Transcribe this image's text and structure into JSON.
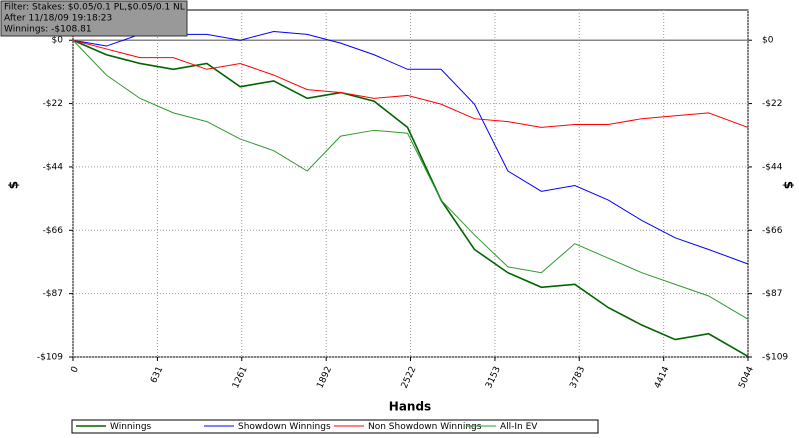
{
  "chart_data": {
    "type": "line",
    "filter_lines": [
      "Filter: Stakes: $0.05/0.1 PL,$0.05/0.1 NL",
      "After 11/18/09 19:18:23",
      "Winnings: -$108.81"
    ],
    "x_label": "Hands",
    "y_label": "$",
    "y2_label": "$",
    "x": [
      0,
      250,
      500,
      750,
      1000,
      1250,
      1500,
      1750,
      2000,
      2250,
      2500,
      2750,
      3000,
      3250,
      3500,
      3750,
      4000,
      4250,
      4500,
      4750,
      5044
    ],
    "series": [
      {
        "name": "Winnings",
        "color": "#006400",
        "values": [
          0,
          -5,
          -8,
          -10,
          -8,
          -16,
          -14,
          -20,
          -18,
          -21,
          -30,
          -55,
          -72,
          -80,
          -85,
          -84,
          -92,
          -98,
          -103,
          -101,
          -108.81
        ]
      },
      {
        "name": "Showdown Winnings",
        "color": "#0000ff",
        "values": [
          0,
          -2,
          2,
          2,
          2,
          0,
          3,
          2,
          -1,
          -5,
          -10,
          -10,
          -22,
          -45,
          -52,
          -50,
          -55,
          -62,
          -68,
          -72,
          -77
        ]
      },
      {
        "name": "Non Showdown Winnings",
        "color": "#ff0000",
        "values": [
          0,
          -3,
          -6,
          -6,
          -10,
          -8,
          -12,
          -17,
          -18,
          -20,
          -19,
          -22,
          -27,
          -28,
          -30,
          -29,
          -29,
          -27,
          -26,
          -25,
          -30
        ]
      },
      {
        "name": "All-In EV",
        "color": "#2e9a2e",
        "values": [
          0,
          -12,
          -20,
          -25,
          -28,
          -34,
          -38,
          -45,
          -33,
          -31,
          -32,
          -55,
          -67,
          -78,
          -80,
          -70,
          -75,
          -80,
          -84,
          -88,
          -96
        ]
      }
    ],
    "xlim": [
      0,
      5044
    ],
    "xticks": [
      0,
      631,
      1261,
      1892,
      2522,
      3153,
      3783,
      4414,
      5044
    ],
    "ylim": [
      -109,
      10.4
    ],
    "yticks": [
      {
        "value": 0,
        "label": "$0"
      },
      {
        "value": -21.8,
        "label": "-$22"
      },
      {
        "value": -43.6,
        "label": "-$44"
      },
      {
        "value": -65.4,
        "label": "-$66"
      },
      {
        "value": -87.2,
        "label": "-$87"
      },
      {
        "value": -109,
        "label": "-$109"
      }
    ],
    "grid": true
  }
}
